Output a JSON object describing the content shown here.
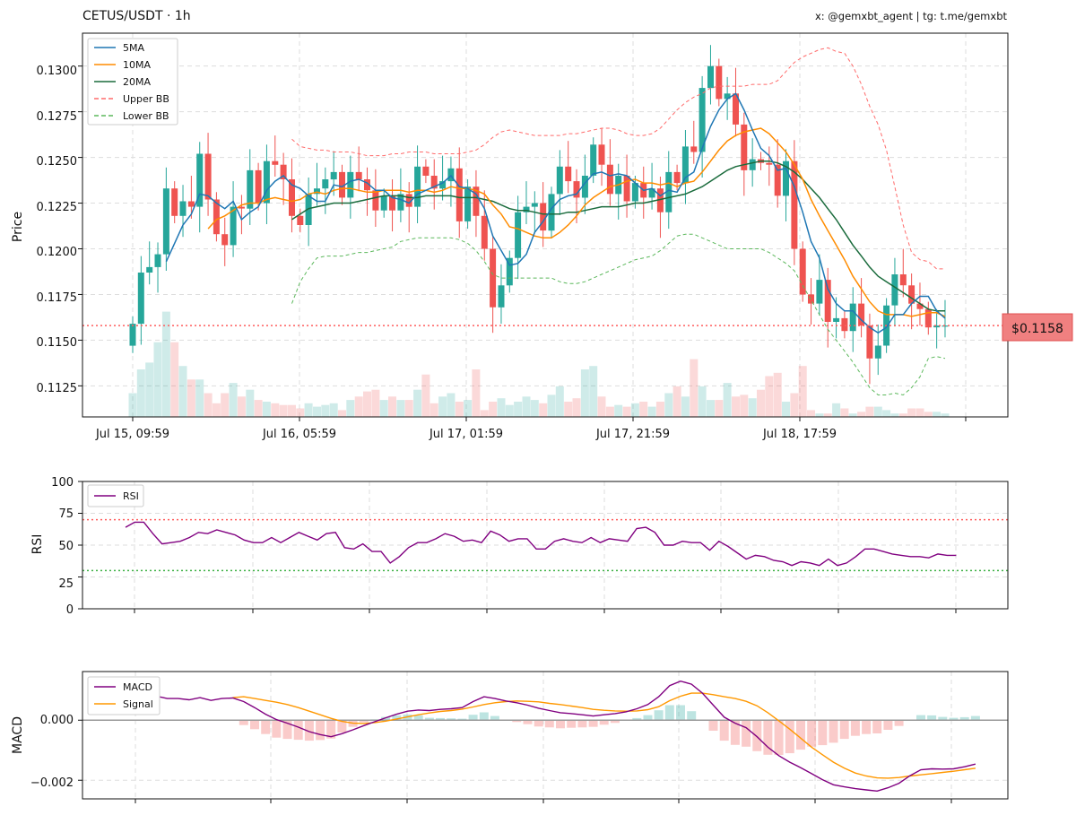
{
  "header": {
    "title": "CETUS/USDT · 1h",
    "credit": "x: @gemxbt_agent | tg: t.me/gemxbt"
  },
  "colors": {
    "up": "#26a69a",
    "down": "#ef5350",
    "ma5": "#1f77b4",
    "ma10": "#ff8c00",
    "ma20": "#1a6b3c",
    "upper_bb": "#ff6b6b",
    "lower_bb": "#5cb85c",
    "rsi": "#800080",
    "macd": "#800080",
    "signal": "#ff9800",
    "price_line": "#ff5c5c"
  },
  "chart_data": [
    {
      "type": "candlestick",
      "panel": "price",
      "ylabel": "Price",
      "ylim": [
        0.1108,
        0.1318
      ],
      "yticks": [
        "0.1125",
        "0.1150",
        "0.1175",
        "0.1200",
        "0.1225",
        "0.1250",
        "0.1275",
        "0.1300"
      ],
      "xtick_labels": [
        "Jul 15, 09:59",
        "Jul 16, 05:59",
        "Jul 17, 01:59",
        "Jul 17, 21:59",
        "Jul 18, 17:59"
      ],
      "legend": [
        "5MA",
        "10MA",
        "20MA",
        "Upper BB",
        "Lower BB"
      ],
      "current_price": 0.1158,
      "current_price_label": "$0.1158",
      "close": [
        0.1159,
        0.1187,
        0.119,
        0.1197,
        0.1233,
        0.1218,
        0.1226,
        0.1223,
        0.1252,
        0.1227,
        0.1208,
        0.1202,
        0.1223,
        0.1222,
        0.1243,
        0.1225,
        0.1248,
        0.1246,
        0.1238,
        0.1218,
        0.1213,
        0.123,
        0.1233,
        0.1238,
        0.1242,
        0.1228,
        0.1242,
        0.1238,
        0.1232,
        0.1221,
        0.1229,
        0.1221,
        0.123,
        0.1223,
        0.1245,
        0.124,
        0.1233,
        0.1237,
        0.1244,
        0.1215,
        0.1234,
        0.1218,
        0.12,
        0.1168,
        0.118,
        0.1195,
        0.122,
        0.1223,
        0.1225,
        0.121,
        0.123,
        0.1245,
        0.1237,
        0.1228,
        0.124,
        0.1257,
        0.1246,
        0.123,
        0.124,
        0.1226,
        0.1236,
        0.1228,
        0.1233,
        0.122,
        0.1242,
        0.1236,
        0.1256,
        0.1253,
        0.1288,
        0.13,
        0.1282,
        0.1285,
        0.1268,
        0.1243,
        0.1249,
        0.1247,
        0.1246,
        0.1229,
        0.1248,
        0.12,
        0.1175,
        0.117,
        0.1183,
        0.116,
        0.1162,
        0.1155,
        0.117,
        0.1158,
        0.114,
        0.1147,
        0.1169,
        0.1186,
        0.118,
        0.117,
        0.1167,
        0.1157,
        0.1158,
        0.1158
      ],
      "volume": [
        14,
        28,
        32,
        44,
        62,
        44,
        30,
        22,
        22,
        14,
        8,
        14,
        20,
        12,
        16,
        10,
        9,
        8,
        7,
        7,
        5,
        8,
        6,
        7,
        8,
        4,
        10,
        12,
        15,
        16,
        10,
        12,
        10,
        10,
        16,
        25,
        8,
        12,
        14,
        9,
        10,
        28,
        4,
        9,
        11,
        7,
        9,
        12,
        10,
        8,
        13,
        18,
        9,
        11,
        28,
        30,
        12,
        6,
        7,
        6,
        8,
        9,
        6,
        9,
        14,
        18,
        12,
        34,
        18,
        10,
        10,
        20,
        12,
        13,
        11,
        16,
        24,
        26,
        9,
        14,
        30,
        4,
        2,
        2,
        8,
        5,
        2,
        3,
        6,
        6,
        4,
        2,
        2,
        5,
        5,
        3,
        3,
        2
      ],
      "ma5": [
        null,
        null,
        null,
        null,
        0.1193,
        0.1203,
        0.1213,
        0.1219,
        0.123,
        0.1229,
        0.1225,
        0.1222,
        0.1226,
        0.1216,
        0.122,
        0.1223,
        0.1232,
        0.1237,
        0.124,
        0.1235,
        0.1233,
        0.1229,
        0.1226,
        0.1226,
        0.1235,
        0.1234,
        0.1237,
        0.1238,
        0.1236,
        0.1232,
        0.1232,
        0.1228,
        0.1227,
        0.1225,
        0.123,
        0.1232,
        0.1234,
        0.1236,
        0.124,
        0.1234,
        0.1233,
        0.123,
        0.1222,
        0.1207,
        0.1199,
        0.1191,
        0.1192,
        0.1197,
        0.1209,
        0.1215,
        0.1222,
        0.1227,
        0.1229,
        0.123,
        0.1236,
        0.1241,
        0.1242,
        0.124,
        0.1241,
        0.124,
        0.1236,
        0.1232,
        0.1233,
        0.1229,
        0.1232,
        0.1231,
        0.1239,
        0.1242,
        0.1255,
        0.1267,
        0.1276,
        0.1282,
        0.1285,
        0.1276,
        0.1265,
        0.1255,
        0.1251,
        0.1243,
        0.1244,
        0.1234,
        0.122,
        0.1204,
        0.1195,
        0.1178,
        0.117,
        0.1166,
        0.1166,
        0.1161,
        0.1157,
        0.1154,
        0.1157,
        0.1164,
        0.1164,
        0.117,
        0.1174,
        0.1174,
        0.1166,
        0.1162
      ],
      "ma10": [
        null,
        null,
        null,
        null,
        null,
        null,
        null,
        null,
        null,
        0.1211,
        0.1216,
        0.1218,
        0.1221,
        0.1224,
        0.1225,
        0.1225,
        0.1227,
        0.1228,
        0.1227,
        0.1226,
        0.1227,
        0.123,
        0.1231,
        0.123,
        0.1232,
        0.1233,
        0.1233,
        0.1232,
        0.1231,
        0.1231,
        0.1232,
        0.1232,
        0.1232,
        0.1231,
        0.1232,
        0.1232,
        0.1231,
        0.1232,
        0.1234,
        0.1233,
        0.1233,
        0.1232,
        0.123,
        0.1224,
        0.1219,
        0.1212,
        0.1211,
        0.1209,
        0.1207,
        0.1206,
        0.1206,
        0.1209,
        0.1213,
        0.1218,
        0.1224,
        0.1228,
        0.1231,
        0.1234,
        0.1235,
        0.1237,
        0.1238,
        0.1236,
        0.1236,
        0.1235,
        0.1236,
        0.1234,
        0.1236,
        0.1237,
        0.1242,
        0.1248,
        0.1254,
        0.1259,
        0.1262,
        0.1264,
        0.1265,
        0.1266,
        0.1263,
        0.1258,
        0.1253,
        0.1246,
        0.1238,
        0.1227,
        0.1218,
        0.121,
        0.1202,
        0.1194,
        0.1185,
        0.1178,
        0.1171,
        0.1166,
        0.1164,
        0.1164,
        0.1164,
        0.1163,
        0.1164,
        0.1165,
        0.1165,
        0.1163
      ],
      "ma20": [
        null,
        null,
        null,
        null,
        null,
        null,
        null,
        null,
        null,
        null,
        null,
        null,
        null,
        null,
        null,
        null,
        null,
        null,
        null,
        0.1216,
        0.1219,
        0.1222,
        0.1223,
        0.1224,
        0.1225,
        0.1225,
        0.1225,
        0.1226,
        0.1227,
        0.1228,
        0.1229,
        0.1229,
        0.1229,
        0.1228,
        0.1228,
        0.1229,
        0.1229,
        0.1229,
        0.1229,
        0.1228,
        0.1228,
        0.1228,
        0.1227,
        0.1226,
        0.1224,
        0.1222,
        0.1221,
        0.1221,
        0.122,
        0.1219,
        0.1219,
        0.1219,
        0.122,
        0.122,
        0.1221,
        0.1222,
        0.1223,
        0.1223,
        0.1223,
        0.1224,
        0.1225,
        0.1225,
        0.1226,
        0.1227,
        0.1228,
        0.1229,
        0.123,
        0.1232,
        0.1234,
        0.1237,
        0.124,
        0.1243,
        0.1245,
        0.1246,
        0.1247,
        0.1248,
        0.1248,
        0.1247,
        0.1245,
        0.1242,
        0.1238,
        0.1233,
        0.1228,
        0.1222,
        0.1216,
        0.1209,
        0.1202,
        0.1196,
        0.119,
        0.1185,
        0.1182,
        0.1179,
        0.1176,
        0.1173,
        0.117,
        0.1167,
        0.1166,
        0.1166
      ],
      "upper_bb": [
        null,
        null,
        null,
        null,
        null,
        null,
        null,
        null,
        null,
        null,
        null,
        null,
        null,
        null,
        null,
        null,
        null,
        null,
        null,
        0.126,
        0.1256,
        0.1255,
        0.1254,
        0.1254,
        0.1253,
        0.1253,
        0.1253,
        0.1252,
        0.1251,
        0.1251,
        0.1251,
        0.1252,
        0.1252,
        0.1253,
        0.1253,
        0.1253,
        0.1252,
        0.1252,
        0.1252,
        0.1252,
        0.1253,
        0.1254,
        0.1257,
        0.1261,
        0.1264,
        0.1265,
        0.1264,
        0.1263,
        0.1262,
        0.1262,
        0.1262,
        0.1262,
        0.1263,
        0.1263,
        0.1264,
        0.1265,
        0.1266,
        0.1266,
        0.1265,
        0.1263,
        0.1262,
        0.1262,
        0.1263,
        0.1266,
        0.1271,
        0.1276,
        0.128,
        0.1283,
        0.1285,
        0.1288,
        0.1289,
        0.1289,
        0.1289,
        0.1289,
        0.129,
        0.129,
        0.129,
        0.1292,
        0.1297,
        0.1302,
        0.1305,
        0.1307,
        0.1309,
        0.131,
        0.1308,
        0.1307,
        0.13,
        0.129,
        0.1278,
        0.1268,
        0.1254,
        0.1234,
        0.1213,
        0.1198,
        0.1194,
        0.1193,
        0.1189,
        0.1189
      ],
      "lower_bb": [
        null,
        null,
        null,
        null,
        null,
        null,
        null,
        null,
        null,
        null,
        null,
        null,
        null,
        null,
        null,
        null,
        null,
        null,
        null,
        0.117,
        0.1182,
        0.1189,
        0.1195,
        0.1196,
        0.1196,
        0.1196,
        0.1197,
        0.1198,
        0.1198,
        0.1199,
        0.12,
        0.1201,
        0.1204,
        0.1205,
        0.1206,
        0.1206,
        0.1206,
        0.1206,
        0.1206,
        0.1205,
        0.1203,
        0.1199,
        0.1193,
        0.1186,
        0.1184,
        0.1184,
        0.1184,
        0.1184,
        0.1184,
        0.1184,
        0.1184,
        0.1182,
        0.1181,
        0.1181,
        0.1182,
        0.1184,
        0.1186,
        0.1188,
        0.119,
        0.1192,
        0.1194,
        0.1195,
        0.1196,
        0.1199,
        0.1203,
        0.1207,
        0.1208,
        0.1208,
        0.1206,
        0.1204,
        0.1202,
        0.12,
        0.12,
        0.12,
        0.12,
        0.12,
        0.1198,
        0.1195,
        0.1192,
        0.1188,
        0.118,
        0.1172,
        0.1164,
        0.1156,
        0.115,
        0.1144,
        0.1138,
        0.1131,
        0.1124,
        0.112,
        0.112,
        0.1121,
        0.112,
        0.1124,
        0.113,
        0.114,
        0.1141,
        0.114
      ]
    },
    {
      "type": "line",
      "panel": "rsi",
      "ylabel": "RSI",
      "ylim": [
        0,
        100
      ],
      "yticks": [
        "0",
        "25",
        "50",
        "75",
        "100"
      ],
      "overbought": 70,
      "oversold": 30,
      "legend": [
        "RSI"
      ],
      "series": [
        {
          "name": "RSI",
          "values": [
            64,
            68,
            68,
            59,
            51,
            52,
            53,
            56,
            60,
            59,
            62,
            60,
            58,
            54,
            52,
            52,
            56,
            52,
            56,
            60,
            57,
            54,
            59,
            60,
            48,
            47,
            51,
            45,
            45,
            36,
            41,
            48,
            52,
            52,
            55,
            59,
            57,
            53,
            54,
            52,
            61,
            58,
            53,
            55,
            55,
            47,
            47,
            53,
            55,
            53,
            52,
            56,
            52,
            55,
            54,
            53,
            63,
            64,
            60,
            50,
            50,
            53,
            52,
            52,
            46,
            53,
            49,
            44,
            39,
            42,
            41,
            38,
            37,
            34,
            37,
            36,
            34,
            39,
            34,
            36,
            41,
            47,
            47,
            45,
            43,
            42,
            41,
            41,
            40,
            43,
            42,
            42
          ]
        }
      ]
    },
    {
      "type": "line",
      "panel": "macd",
      "ylabel": "MACD",
      "ylim": [
        -0.00262,
        0.00162
      ],
      "yticks": [
        "0.000",
        "−0.002"
      ],
      "legend": [
        "MACD",
        "Signal"
      ],
      "macd": [
        0.0009,
        0.0008,
        0.0008,
        0.00072,
        0.00072,
        0.00068,
        0.00075,
        0.00066,
        0.00072,
        0.00074,
        0.00062,
        0.00042,
        0.0002,
        2e-05,
        -0.0001,
        -0.00023,
        -0.00038,
        -0.00048,
        -0.00055,
        -0.00045,
        -0.00032,
        -0.00018,
        -5e-05,
        8e-05,
        0.0002,
        0.0003,
        0.00034,
        0.00032,
        0.00036,
        0.00038,
        0.00042,
        0.00062,
        0.00078,
        0.00072,
        0.00064,
        0.00058,
        0.0005,
        0.0004,
        0.00032,
        0.00025,
        0.00022,
        0.00018,
        0.00014,
        0.00018,
        0.00022,
        0.00028,
        0.00038,
        0.00052,
        0.00078,
        0.00115,
        0.0013,
        0.0012,
        0.0009,
        0.0005,
        0.0001,
        -0.0001,
        -0.00025,
        -0.00055,
        -0.0009,
        -0.00118,
        -0.0014,
        -0.00158,
        -0.00178,
        -0.00198,
        -0.00215,
        -0.00222,
        -0.00228,
        -0.00232,
        -0.00236,
        -0.00225,
        -0.0021,
        -0.00185,
        -0.00165,
        -0.00162,
        -0.00163,
        -0.00162,
        -0.00155,
        -0.00146
      ],
      "signal": [
        null,
        null,
        null,
        null,
        null,
        null,
        null,
        null,
        null,
        0.00075,
        0.00078,
        0.00072,
        0.00066,
        0.0006,
        0.00052,
        0.00042,
        0.0003,
        0.00018,
        6e-05,
        -4e-05,
        -0.0001,
        -0.00011,
        -8e-05,
        -3e-05,
        4e-05,
        0.00011,
        0.00018,
        0.00024,
        0.00029,
        0.00032,
        0.00037,
        0.00044,
        0.00052,
        0.00058,
        0.00062,
        0.00064,
        0.00063,
        0.00061,
        0.00056,
        0.00052,
        0.00047,
        0.00042,
        0.00036,
        0.00033,
        0.00031,
        0.0003,
        0.00031,
        0.00035,
        0.00045,
        0.00065,
        0.0008,
        0.0009,
        0.0009,
        0.00085,
        0.00078,
        0.00072,
        0.00063,
        0.00048,
        0.00025,
        -2e-05,
        -0.0003,
        -0.0006,
        -0.0009,
        -0.00115,
        -0.0014,
        -0.0016,
        -0.00176,
        -0.00186,
        -0.00192,
        -0.00193,
        -0.00191,
        -0.00186,
        -0.00182,
        -0.00178,
        -0.00174,
        -0.0017,
        -0.00165,
        -0.0016
      ],
      "series": [
        {
          "name": "MACD"
        },
        {
          "name": "Signal"
        }
      ]
    }
  ]
}
